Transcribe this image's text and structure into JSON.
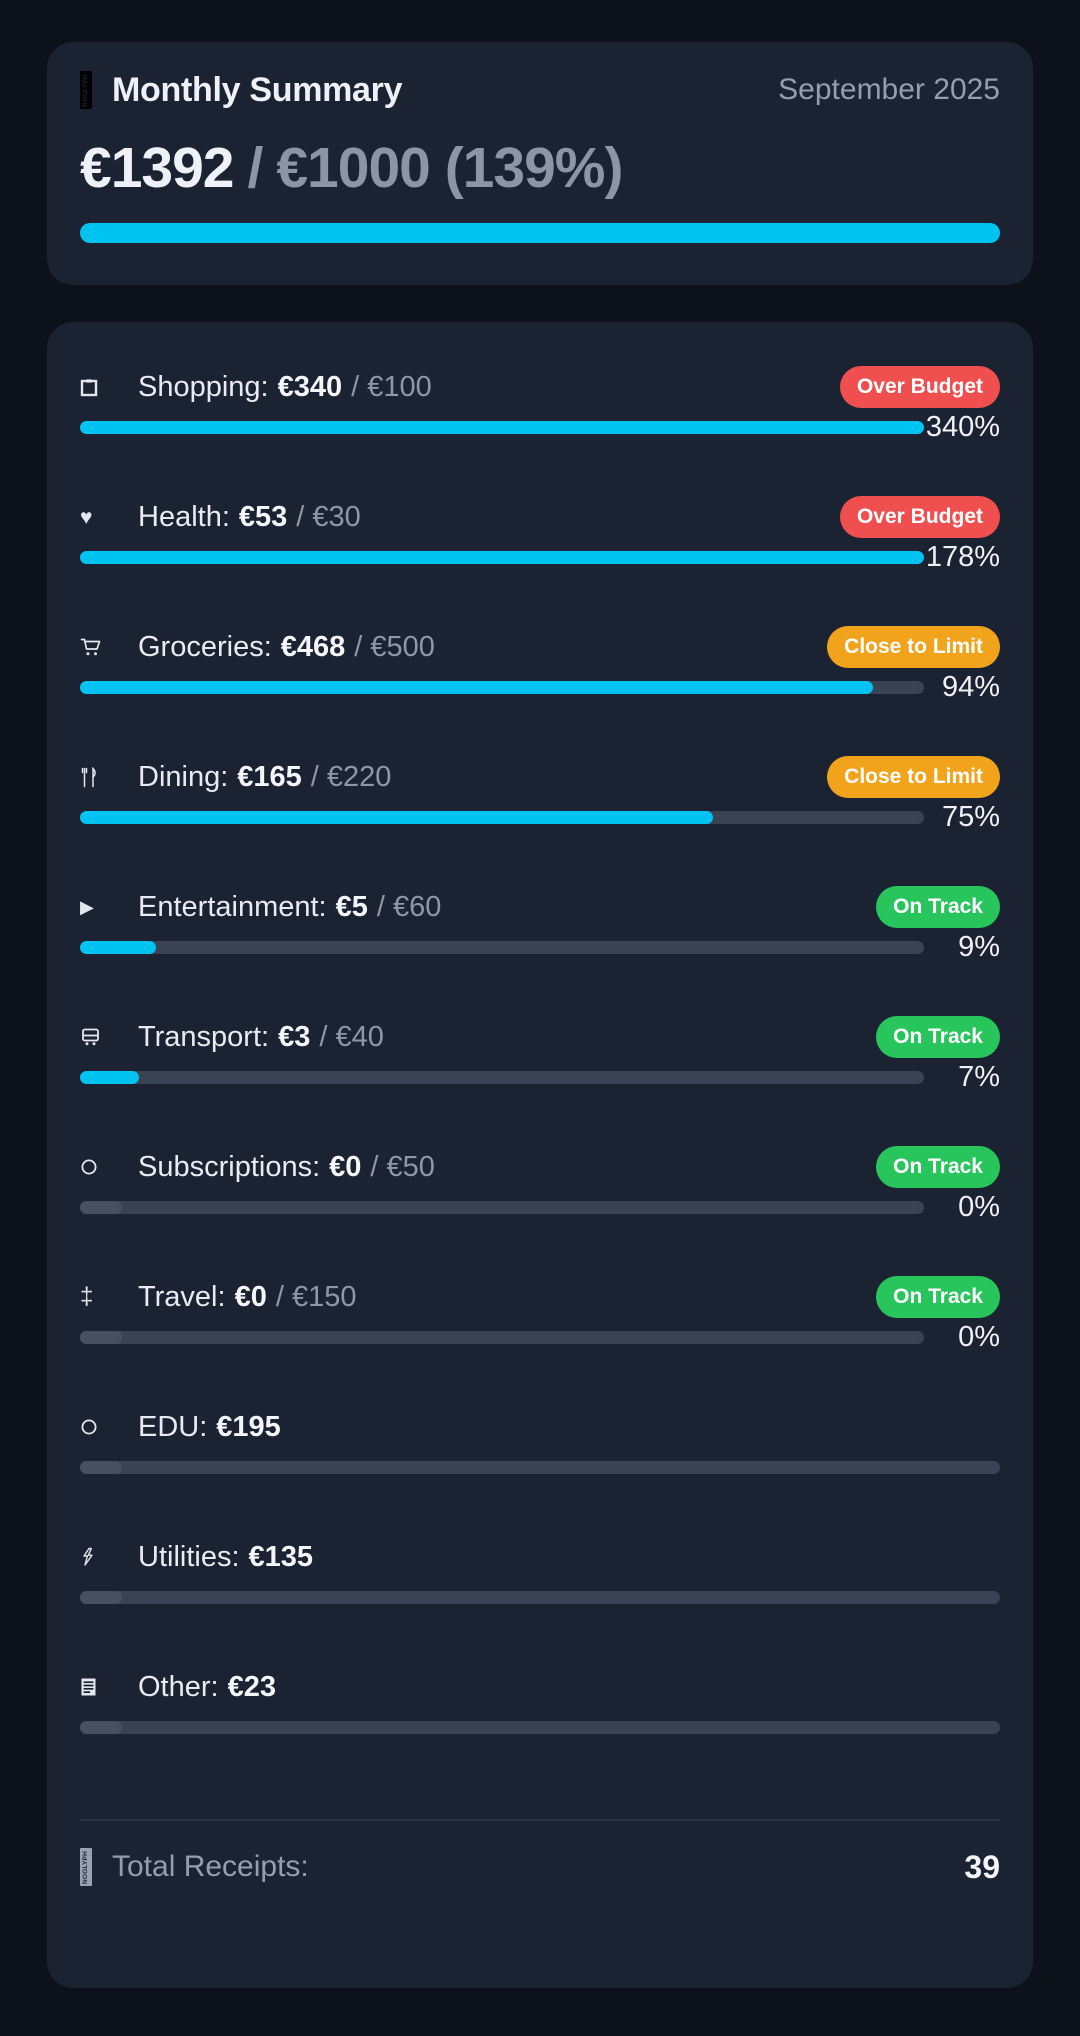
{
  "summary": {
    "icon": "receipt-icon",
    "title": "Monthly Summary",
    "period": "September 2025",
    "spent": "€1392",
    "separator": "/",
    "budget_with_pct": "€1000 (139%)",
    "progress_pct": 100
  },
  "categories": [
    {
      "icon": "shopping-bag-icon",
      "name": "Shopping:",
      "amount": "€340",
      "budget": "/ €100",
      "badge": "Over Budget",
      "badge_type": "danger",
      "pct_label": "340%",
      "fill_pct": 100
    },
    {
      "icon": "heart-icon",
      "name": "Health:",
      "amount": "€53",
      "budget": "/ €30",
      "badge": "Over Budget",
      "badge_type": "danger",
      "pct_label": "178%",
      "fill_pct": 100
    },
    {
      "icon": "cart-icon",
      "name": "Groceries:",
      "amount": "€468",
      "budget": "/ €500",
      "badge": "Close to Limit",
      "badge_type": "warning",
      "pct_label": "94%",
      "fill_pct": 94
    },
    {
      "icon": "utensils-icon",
      "name": "Dining:",
      "amount": "€165",
      "budget": "/ €220",
      "badge": "Close to Limit",
      "badge_type": "warning",
      "pct_label": "75%",
      "fill_pct": 75
    },
    {
      "icon": "play-icon",
      "name": "Entertainment:",
      "amount": "€5",
      "budget": "/ €60",
      "badge": "On Track",
      "badge_type": "success",
      "pct_label": "9%",
      "fill_pct": 9
    },
    {
      "icon": "bus-icon",
      "name": "Transport:",
      "amount": "€3",
      "budget": "/ €40",
      "badge": "On Track",
      "badge_type": "success",
      "pct_label": "7%",
      "fill_pct": 7
    },
    {
      "icon": "circle-icon",
      "name": "Subscriptions:",
      "amount": "€0",
      "budget": "/ €50",
      "badge": "On Track",
      "badge_type": "success",
      "pct_label": "0%",
      "fill_pct": 0
    },
    {
      "icon": "plane-icon",
      "name": "Travel:",
      "amount": "€0",
      "budget": "/ €150",
      "badge": "On Track",
      "badge_type": "success",
      "pct_label": "0%",
      "fill_pct": 0
    },
    {
      "icon": "circle-icon",
      "name": "EDU:",
      "amount": "€195",
      "budget": "",
      "badge": "",
      "badge_type": "",
      "pct_label": "",
      "fill_pct": null
    },
    {
      "icon": "lightning-icon",
      "name": "Utilities:",
      "amount": "€135",
      "budget": "",
      "badge": "",
      "badge_type": "",
      "pct_label": "",
      "fill_pct": null
    },
    {
      "icon": "document-icon",
      "name": "Other:",
      "amount": "€23",
      "budget": "",
      "badge": "",
      "badge_type": "",
      "pct_label": "",
      "fill_pct": null
    }
  ],
  "footer": {
    "icon": "receipt-icon",
    "label": "Total Receipts:",
    "value": "39"
  },
  "colors": {
    "accent": "#00c3f2",
    "danger": "#f04f4f",
    "warning": "#f1a31b",
    "success": "#28c55d",
    "card_bg": "#1b2231",
    "page_bg": "#0d1119",
    "track": "#3a4354"
  }
}
